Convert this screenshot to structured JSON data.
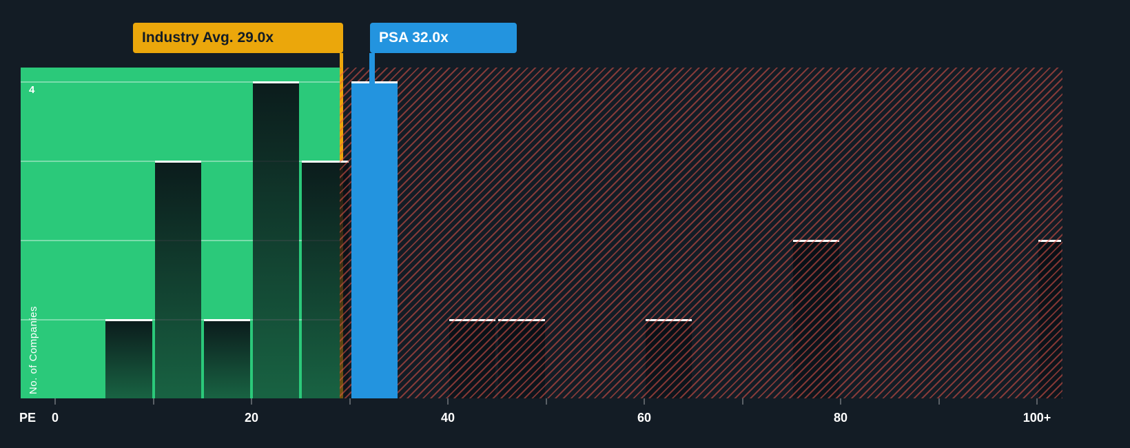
{
  "chart_data": {
    "type": "bar",
    "subtype": "histogram",
    "title": "",
    "xlabel": "PE",
    "ylabel": "No. of Companies",
    "x_range": [
      0,
      103
    ],
    "x_tick_step": 10,
    "x_tick_labels": [
      {
        "value": 0,
        "label": "0"
      },
      {
        "value": 20,
        "label": "20"
      },
      {
        "value": 40,
        "label": "40"
      },
      {
        "value": 60,
        "label": "60"
      },
      {
        "value": 80,
        "label": "80"
      },
      {
        "value": 100,
        "label": "100+"
      }
    ],
    "y_range": [
      0,
      4
    ],
    "y_max_label": "4",
    "grid": true,
    "legend": "none",
    "bins": [
      {
        "range": [
          5,
          10
        ],
        "count": 1
      },
      {
        "range": [
          10,
          15
        ],
        "count": 3
      },
      {
        "range": [
          15,
          20
        ],
        "count": 1
      },
      {
        "range": [
          20,
          25
        ],
        "count": 4
      },
      {
        "range": [
          25,
          30
        ],
        "count": 3
      },
      {
        "range": [
          30,
          35
        ],
        "count": 4,
        "highlight": "psa"
      },
      {
        "range": [
          40,
          45
        ],
        "count": 1
      },
      {
        "range": [
          45,
          50
        ],
        "count": 1
      },
      {
        "range": [
          60,
          65
        ],
        "count": 1
      },
      {
        "range": [
          75,
          80
        ],
        "count": 2
      },
      {
        "range": [
          100,
          103
        ],
        "count": 2
      }
    ],
    "zones": [
      {
        "name": "below-industry-average",
        "start": null,
        "end": 29,
        "style": "solid",
        "color": "#2bc97a"
      },
      {
        "name": "above-industry-average",
        "start": 29,
        "end": null,
        "style": "hatch",
        "color": "#e2544a"
      }
    ],
    "annotations": [
      {
        "id": "industry-avg",
        "label": "Industry Avg. 29.0x",
        "value": 29.0,
        "color": "#eba70b",
        "text_color": "#131c25",
        "line_to_axis": true
      },
      {
        "id": "psa",
        "label": "PSA 32.0x",
        "value": 32.0,
        "color": "#2394df",
        "text_color": "#ffffff",
        "line_to_axis": false
      }
    ],
    "colors": {
      "background": "#131c25",
      "bar_top": "#ffffff",
      "psa_bar": "#2394df",
      "green_zone": "#2bc97a",
      "red_hatch": "#e2544a"
    }
  }
}
